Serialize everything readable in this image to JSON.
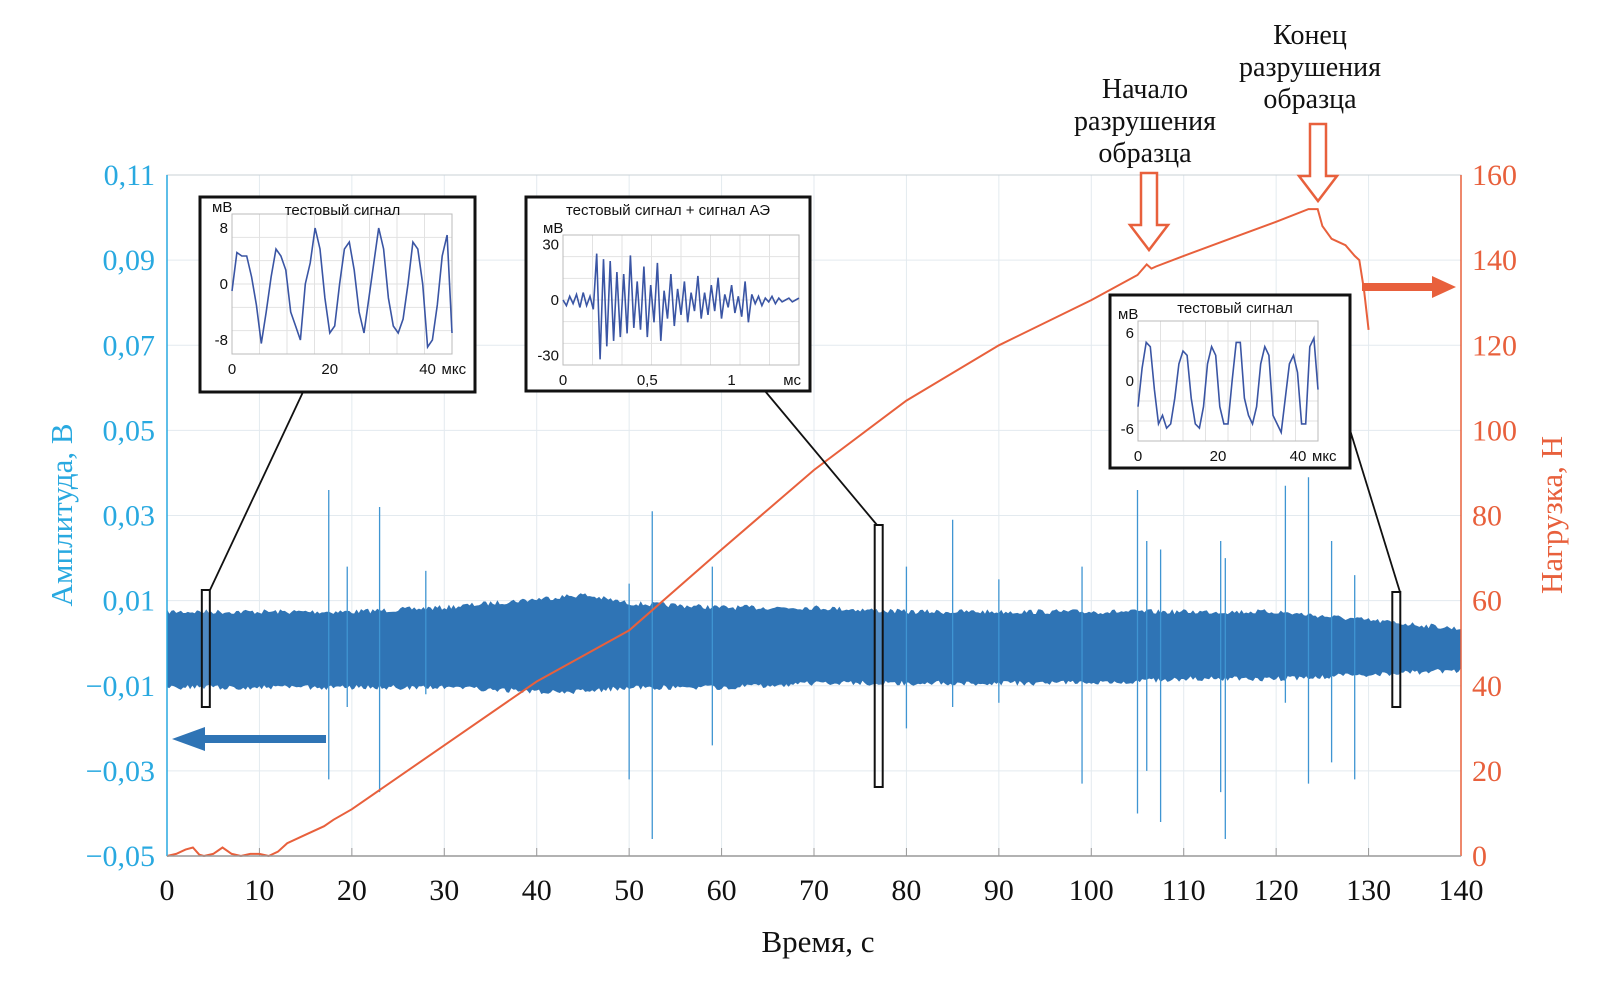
{
  "chart_data": {
    "type": "line",
    "xlabel": "Время, с",
    "ylabel_left": "Амплитуда, В",
    "ylabel_right": "Нагрузка, Н",
    "xlim": [
      0,
      140
    ],
    "ylim_left": [
      -0.05,
      0.11
    ],
    "ylim_right": [
      0,
      160
    ],
    "grid": true,
    "x_ticks": [
      "0",
      "10",
      "20",
      "30",
      "40",
      "50",
      "60",
      "70",
      "80",
      "90",
      "100",
      "110",
      "120",
      "130",
      "140"
    ],
    "y_left_ticks": [
      "−0,05",
      "−0,03",
      "−0,01",
      "0,01",
      "0,03",
      "0,05",
      "0,07",
      "0,09",
      "0,11"
    ],
    "y_right_ticks": [
      "0",
      "20",
      "40",
      "60",
      "80",
      "100",
      "120",
      "140",
      "160"
    ],
    "colors": {
      "amplitude": "#2f74b5",
      "load": "#e8603c",
      "left_axis": "#29a9e0",
      "right_axis": "#e8603c",
      "inset_line": "#3a55a4"
    },
    "series": [
      {
        "axis": "left",
        "kind": "amplitude-envelope",
        "envelope": [
          [
            0,
            0.008,
            -0.011
          ],
          [
            10,
            0.008,
            -0.011
          ],
          [
            20,
            0.008,
            -0.011
          ],
          [
            30,
            0.009,
            -0.011
          ],
          [
            40,
            0.011,
            -0.012
          ],
          [
            45,
            0.012,
            -0.012
          ],
          [
            50,
            0.01,
            -0.011
          ],
          [
            60,
            0.009,
            -0.011
          ],
          [
            70,
            0.009,
            -0.01
          ],
          [
            80,
            0.008,
            -0.01
          ],
          [
            90,
            0.008,
            -0.01
          ],
          [
            100,
            0.008,
            -0.01
          ],
          [
            110,
            0.008,
            -0.009
          ],
          [
            120,
            0.008,
            -0.009
          ],
          [
            130,
            0.006,
            -0.008
          ],
          [
            140,
            0.004,
            -0.007
          ]
        ],
        "spikes": [
          [
            17.5,
            0.036,
            -0.032
          ],
          [
            19.5,
            0.018,
            -0.015
          ],
          [
            23,
            0.032,
            -0.035
          ],
          [
            28,
            0.017,
            -0.012
          ],
          [
            50,
            0.014,
            -0.032
          ],
          [
            52.5,
            0.031,
            -0.046
          ],
          [
            59,
            0.018,
            -0.024
          ],
          [
            80,
            0.018,
            -0.02
          ],
          [
            85,
            0.029,
            -0.015
          ],
          [
            90,
            0.015,
            -0.014
          ],
          [
            99,
            0.018,
            -0.033
          ],
          [
            105,
            0.036,
            -0.04
          ],
          [
            106,
            0.024,
            -0.03
          ],
          [
            107.5,
            0.022,
            -0.042
          ],
          [
            114,
            0.024,
            -0.035
          ],
          [
            114.5,
            0.02,
            -0.046
          ],
          [
            121,
            0.037,
            -0.014
          ],
          [
            123.5,
            0.039,
            -0.033
          ],
          [
            126,
            0.024,
            -0.028
          ],
          [
            128.5,
            0.016,
            -0.032
          ]
        ]
      },
      {
        "axis": "right",
        "kind": "load",
        "x": [
          0,
          1,
          2,
          2.8,
          3.5,
          4,
          5,
          6,
          7,
          8,
          9,
          10,
          11,
          12,
          13,
          15,
          17,
          18,
          20,
          30,
          40,
          50,
          60,
          70,
          80,
          90,
          100,
          105,
          106,
          106.5,
          107,
          110,
          115,
          120,
          123.5,
          124.5,
          125,
          126,
          127.5,
          128.5,
          129,
          129.5,
          130
        ],
        "y": [
          0,
          0.5,
          1.5,
          2,
          0.3,
          0,
          0.5,
          2,
          0.5,
          0,
          0.5,
          0.5,
          0,
          1,
          3,
          5,
          7,
          8.5,
          11,
          26,
          41,
          53,
          72,
          90.7,
          107,
          120,
          130.6,
          136.5,
          139,
          138,
          138.5,
          141,
          145,
          149,
          152,
          152,
          148,
          145,
          143.5,
          141,
          140,
          133,
          123.6
        ]
      }
    ],
    "annotations": {
      "start_label": [
        "Начало",
        "разрушения",
        "образца"
      ],
      "end_label": [
        "Конец",
        "разрушения",
        "образца"
      ]
    },
    "insets": [
      {
        "title": "тестовый сигнал",
        "unit_y": "мВ",
        "unit_x": "мкс",
        "y_ticks": [
          "8",
          "0",
          "-8"
        ],
        "x_ticks": [
          "0",
          "20",
          "40"
        ],
        "xlim": [
          0,
          45
        ],
        "ylim": [
          -10,
          10
        ],
        "at_time": 4.2,
        "values": [
          -1,
          4.5,
          4,
          4,
          1,
          -3,
          -8.5,
          -4,
          1,
          5,
          4,
          2,
          -4,
          -6,
          -8,
          0,
          3,
          8,
          5,
          -2,
          -7,
          -6,
          0,
          5,
          6,
          2,
          -4,
          -7,
          -2,
          3,
          8,
          5,
          -2,
          -6,
          -7,
          -5,
          0,
          6,
          5,
          0,
          -9,
          -8,
          -3,
          4,
          7,
          -7
        ]
      },
      {
        "title": "тестовый сигнал + сигнал АЭ",
        "unit_y": "мВ",
        "unit_x": "мс",
        "y_ticks": [
          "30",
          "0",
          "-30"
        ],
        "x_ticks": [
          "0",
          "0,5",
          "1"
        ],
        "xlim": [
          0,
          1.4
        ],
        "ylim": [
          -35,
          35
        ],
        "at_time": 77,
        "values": [
          0,
          -3,
          2,
          -2,
          3,
          -4,
          4,
          -3,
          2,
          -5,
          25,
          -32,
          22,
          -25,
          21,
          -22,
          15,
          -20,
          14,
          -18,
          24,
          -15,
          10,
          -16,
          18,
          -20,
          8,
          -12,
          20,
          -22,
          5,
          -10,
          14,
          -14,
          6,
          -8,
          10,
          -12,
          4,
          -6,
          13,
          -10,
          4,
          -8,
          8,
          -6,
          12,
          -10,
          3,
          -4,
          8,
          -7,
          2,
          -9,
          10,
          -12,
          3,
          -2,
          2,
          -3,
          1,
          -1,
          2,
          -2,
          1,
          -1,
          0,
          1,
          -1,
          0,
          1
        ]
      },
      {
        "title": "тестовый сигнал",
        "unit_y": "мВ",
        "unit_x": "мкс",
        "y_ticks": [
          "6",
          "0",
          "-6"
        ],
        "x_ticks": [
          "0",
          "20",
          "40"
        ],
        "xlim": [
          0,
          45
        ],
        "ylim": [
          -7,
          7
        ],
        "at_time": 133,
        "values": [
          -3,
          1.5,
          4.5,
          4,
          -1,
          -5,
          -4,
          -5.5,
          -5,
          -2,
          2,
          3.5,
          3,
          -2,
          -5,
          -5.5,
          -3,
          2,
          4,
          3,
          -3,
          -5,
          -5,
          0,
          4.5,
          4.5,
          -2,
          -4,
          -5,
          -3,
          2,
          4,
          3,
          -4,
          -5,
          -6,
          -2,
          2,
          3,
          1,
          -5,
          -5,
          4,
          5,
          -1
        ]
      }
    ]
  }
}
